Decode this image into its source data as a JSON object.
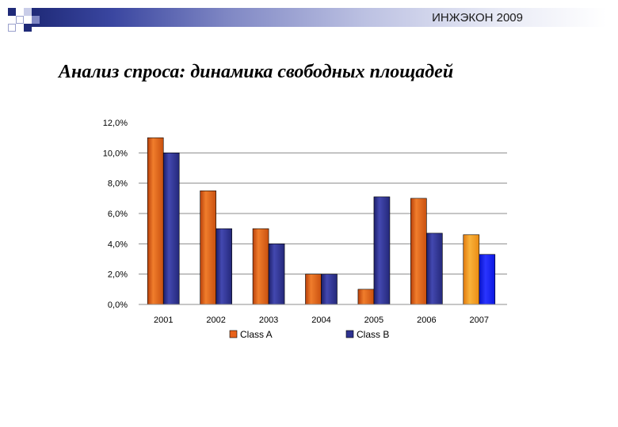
{
  "header": {
    "brand": "ИНЖЭКОН 2009"
  },
  "slide": {
    "title": "Анализ спроса: динамика свободных площадей"
  },
  "chart_data": {
    "type": "bar",
    "title": "",
    "xlabel": "",
    "ylabel": "",
    "categories": [
      "2001",
      "2002",
      "2003",
      "2004",
      "2005",
      "2006",
      "2007"
    ],
    "series": [
      {
        "name": "Class A",
        "color": "#e8621a",
        "values": [
          11.0,
          7.5,
          5.0,
          2.0,
          1.0,
          7.0,
          4.6
        ],
        "highlight_colors": {
          "2007": "#f39a1a"
        }
      },
      {
        "name": "Class B",
        "color": "#2e3290",
        "values": [
          10.0,
          5.0,
          4.0,
          2.0,
          7.1,
          4.7,
          3.3
        ],
        "highlight_colors": {
          "2007": "#0a16e6"
        }
      }
    ],
    "ylim": [
      0,
      12
    ],
    "y_ticks": [
      0,
      2,
      4,
      6,
      8,
      10,
      12
    ],
    "y_tick_labels": [
      "0,0%",
      "2,0%",
      "4,0%",
      "6,0%",
      "8,0%",
      "10,0%",
      "12,0%"
    ],
    "grid": true,
    "legend_position": "bottom"
  }
}
